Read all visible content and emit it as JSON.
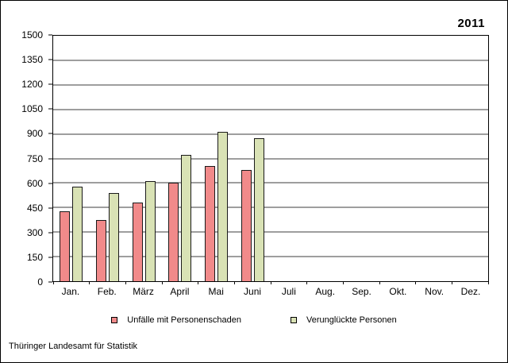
{
  "header": {
    "year": "2011"
  },
  "footer": {
    "source": "Thüringer Landesamt für Statistik"
  },
  "colors": {
    "accidents_fill": "#f18a8a",
    "casualties_fill": "#d9e2b5",
    "bar_border": "#1a1a1a",
    "grid": "#3c3c3c",
    "axis": "#000000"
  },
  "chart_data": {
    "type": "bar",
    "title": "2011",
    "xlabel": "",
    "ylabel": "",
    "categories": [
      "Jan.",
      "Feb.",
      "März",
      "April",
      "Mai",
      "Juni",
      "Juli",
      "Aug.",
      "Sep.",
      "Okt.",
      "Nov.",
      "Dez."
    ],
    "series": [
      {
        "key": "unfaelle",
        "name": "Unfälle mit Personenschaden",
        "color": "#f18a8a",
        "values": [
          425,
          375,
          480,
          600,
          705,
          680,
          0,
          0,
          0,
          0,
          0,
          0
        ]
      },
      {
        "key": "verunglueckte",
        "name": "Verunglückte Personen",
        "color": "#d9e2b5",
        "values": [
          580,
          540,
          610,
          770,
          915,
          875,
          0,
          0,
          0,
          0,
          0,
          0
        ]
      }
    ],
    "ylim": [
      0,
      1500
    ],
    "ytick_step": 150,
    "yticks": [
      0,
      150,
      300,
      450,
      600,
      750,
      900,
      1050,
      1200,
      1350,
      1500
    ],
    "grid": true,
    "legend_position": "bottom"
  }
}
